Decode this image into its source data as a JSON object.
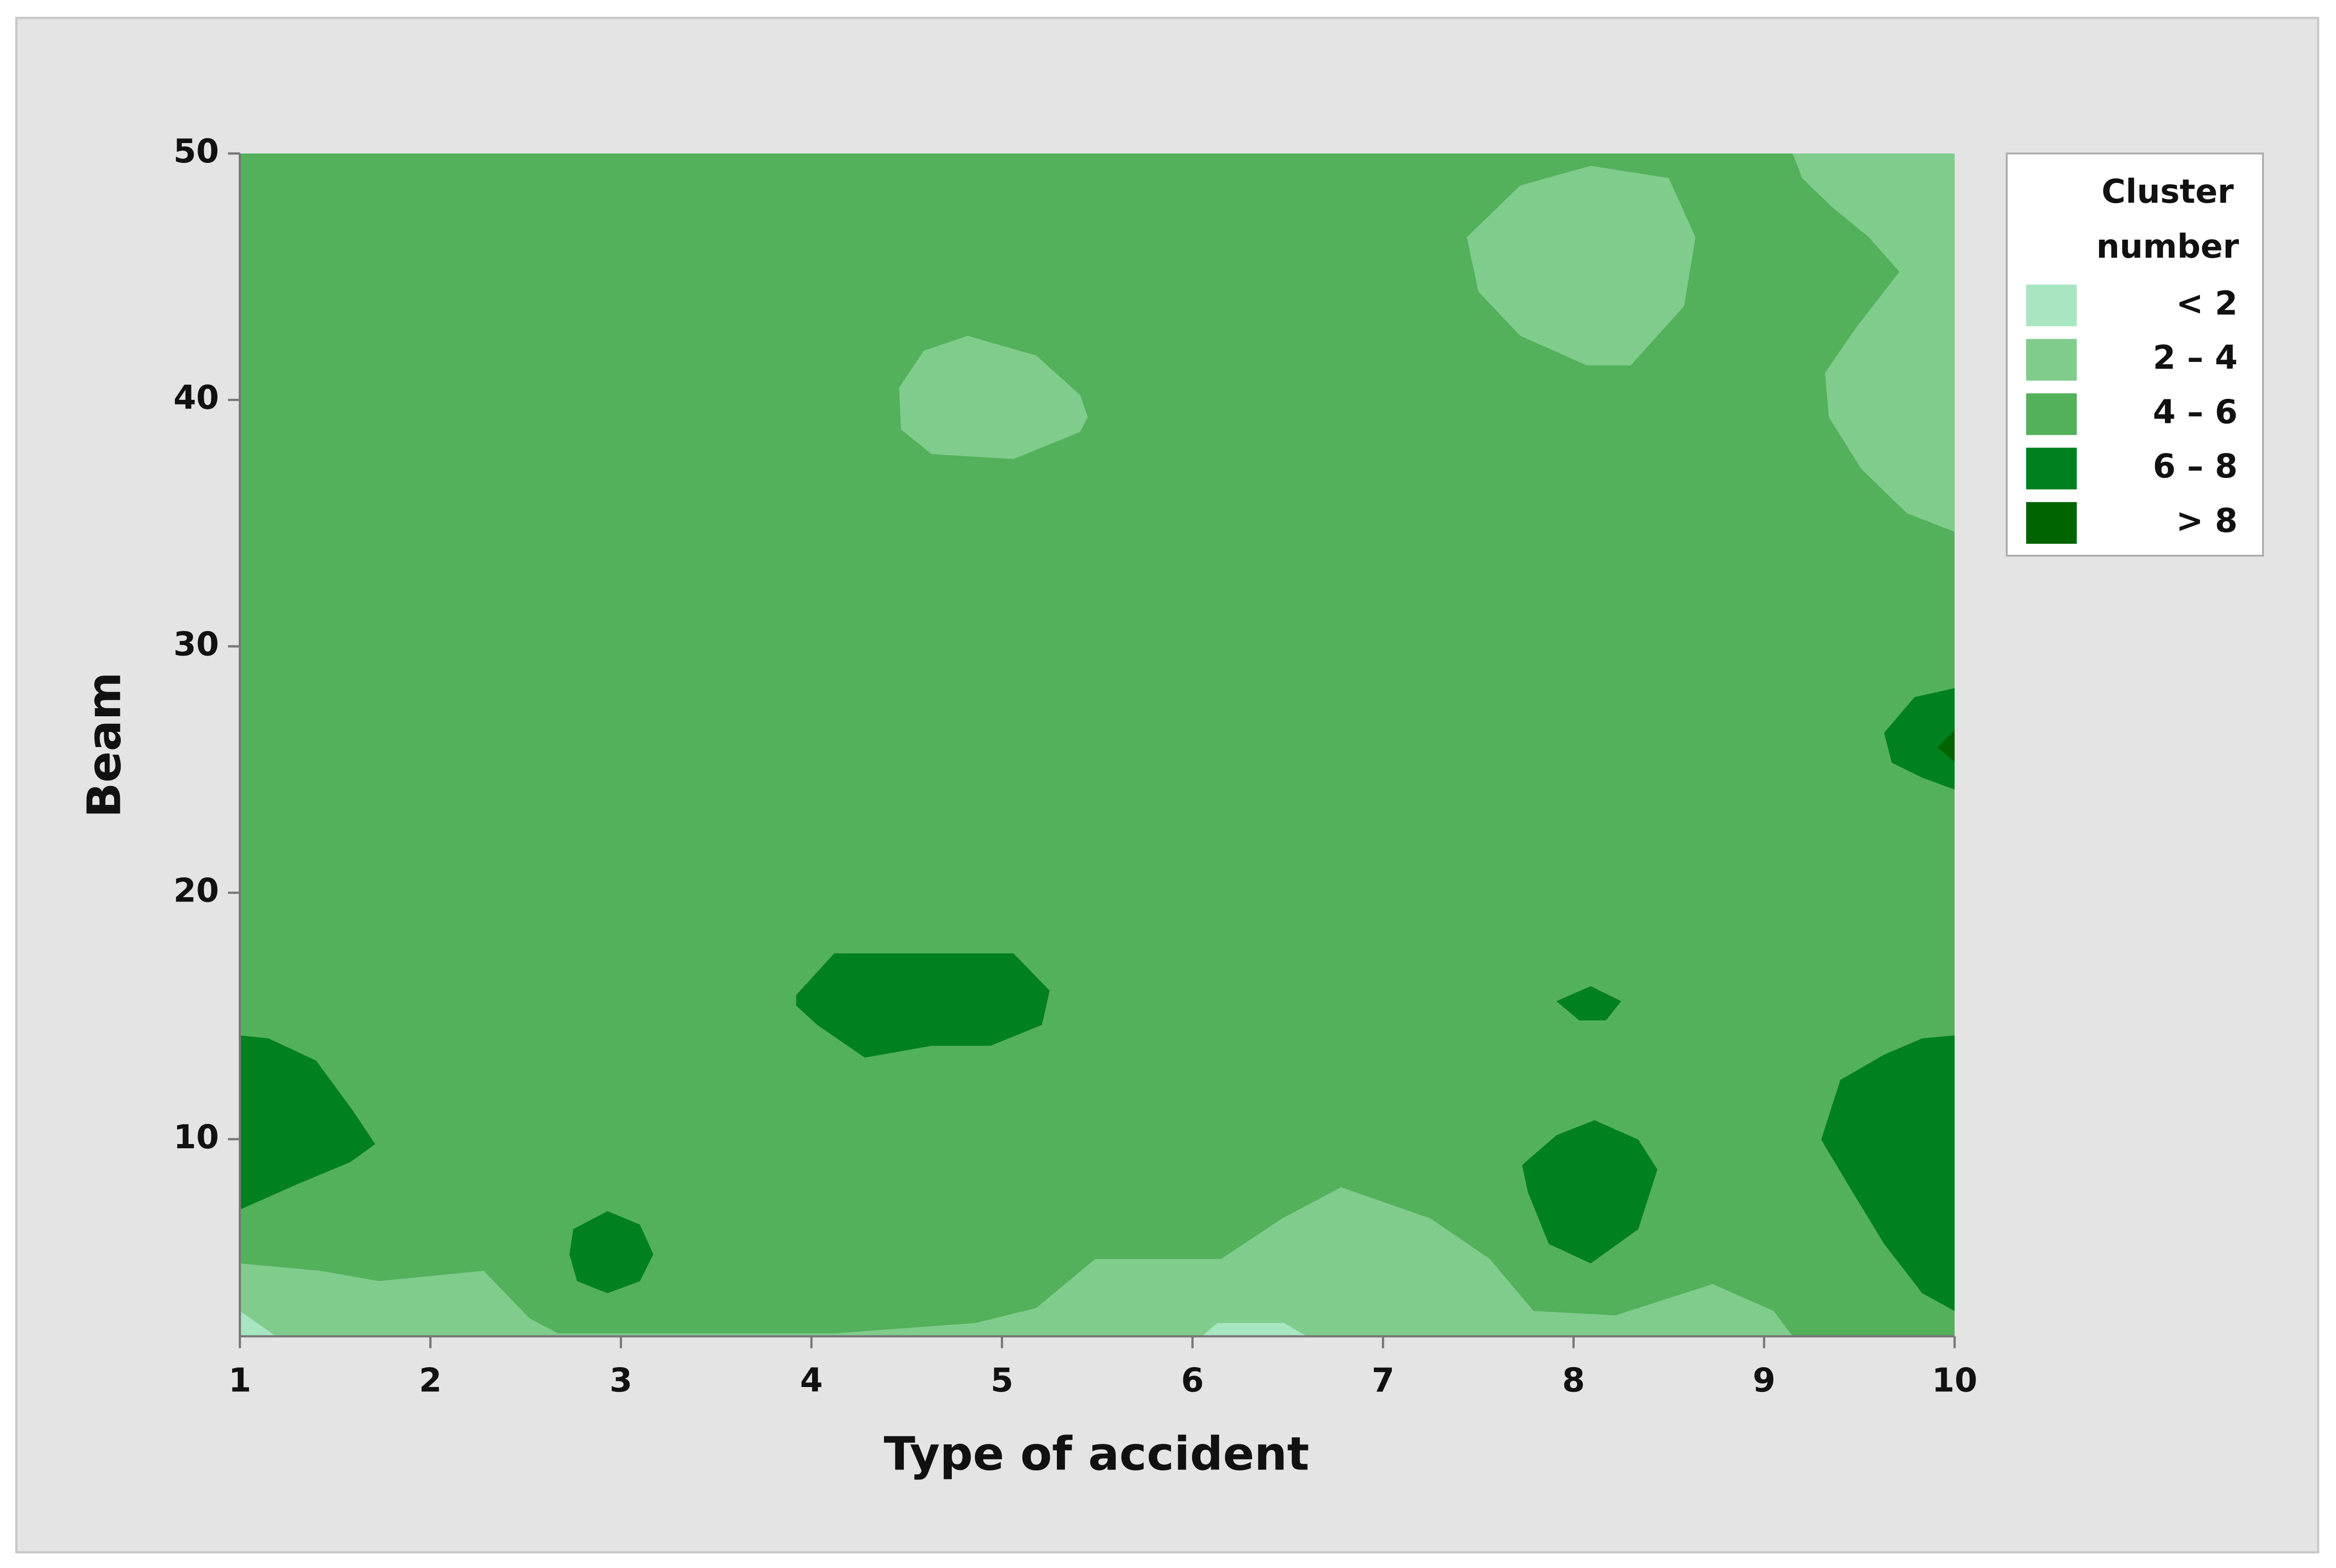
{
  "chart_data": {
    "type": "contour",
    "x_label": "Type of accident",
    "y_label": "Beam",
    "xlim": [
      1,
      10
    ],
    "ylim": [
      2,
      50
    ],
    "xticks": [
      1,
      2,
      3,
      4,
      5,
      6,
      7,
      8,
      9,
      10
    ],
    "yticks": [
      10,
      20,
      30,
      40,
      50
    ],
    "legend_title": "Cluster number",
    "levels": [
      {
        "label": "< 2",
        "color": "#a8e6c2"
      },
      {
        "label": "2 – 4",
        "color": "#80cc8c"
      },
      {
        "label": "4 – 6",
        "color": "#53b05b"
      },
      {
        "label": "6 – 8",
        "color": "#00801f"
      },
      {
        "label": "> 8",
        "color": "#006400"
      }
    ],
    "background_level": 2,
    "regions": [
      {
        "level": 1,
        "x": [
          9.15,
          10,
          10,
          9.75,
          9.51,
          9.34,
          9.32,
          9.48,
          9.71,
          9.55,
          9.36,
          9.2
        ],
        "y": [
          50,
          50,
          34.65,
          35.4,
          37.2,
          39.3,
          41.1,
          42.9,
          45.2,
          46.6,
          47.8,
          49.0
        ]
      },
      {
        "level": 1,
        "x": [
          7.44,
          7.72,
          8.09,
          8.5,
          8.64,
          8.58,
          8.3,
          8.07,
          7.72,
          7.5
        ],
        "y": [
          46.6,
          48.7,
          49.5,
          49.0,
          46.6,
          43.8,
          41.4,
          41.4,
          42.6,
          44.4
        ]
      },
      {
        "level": 1,
        "x": [
          4.46,
          4.59,
          4.82,
          5.18,
          5.41,
          5.45,
          5.41,
          5.06,
          4.63,
          4.47
        ],
        "y": [
          40.5,
          42.0,
          42.6,
          41.8,
          40.2,
          39.3,
          38.7,
          37.6,
          37.8,
          38.8
        ]
      },
      {
        "level": 1,
        "x": [
          1,
          1.42,
          1.73,
          2.28,
          2.52,
          2.67,
          4.12,
          4.86,
          5.18,
          5.49,
          6.15,
          6.47,
          6.78,
          7.25,
          7.56,
          7.79,
          8.22,
          8.73,
          9.05,
          9.15,
          1
        ],
        "y": [
          4.96,
          4.66,
          4.24,
          4.66,
          2.73,
          2.12,
          2.12,
          2.54,
          3.15,
          5.14,
          5.14,
          6.78,
          8.05,
          6.78,
          5.14,
          3.03,
          2.85,
          4.12,
          3.03,
          2,
          2
        ]
      },
      {
        "level": 0,
        "x": [
          1,
          1.19,
          1
        ],
        "y": [
          3.03,
          2,
          2
        ]
      },
      {
        "level": 0,
        "x": [
          6.05,
          6.13,
          6.48,
          6.6
        ],
        "y": [
          2,
          2.54,
          2.54,
          2
        ]
      },
      {
        "level": 3,
        "x": [
          1,
          1.15,
          1.4,
          1.59,
          1.71,
          1.58,
          1.3,
          1
        ],
        "y": [
          14.21,
          14.09,
          13.19,
          11.19,
          9.8,
          9.07,
          8.17,
          7.14
        ]
      },
      {
        "level": 3,
        "x": [
          2.75,
          2.93,
          3.1,
          3.17,
          3.1,
          2.93,
          2.77,
          2.73
        ],
        "y": [
          6.35,
          7.08,
          6.53,
          5.33,
          4.24,
          3.75,
          4.24,
          5.33
        ]
      },
      {
        "level": 3,
        "x": [
          3.92,
          4.12,
          5.06,
          5.25,
          5.21,
          4.94,
          4.63,
          4.28,
          4.03,
          3.92
        ],
        "y": [
          15.85,
          17.54,
          17.54,
          16.03,
          14.64,
          13.79,
          13.79,
          13.31,
          14.64,
          15.42
        ]
      },
      {
        "level": 3,
        "x": [
          7.91,
          8.09,
          8.25,
          8.17,
          8.03
        ],
        "y": [
          15.6,
          16.21,
          15.6,
          14.82,
          14.82
        ]
      },
      {
        "level": 3,
        "x": [
          7.73,
          7.91,
          8.11,
          8.34,
          8.44,
          8.34,
          8.09,
          7.87,
          7.76
        ],
        "y": [
          8.95,
          10.16,
          10.77,
          9.98,
          8.77,
          6.35,
          4.96,
          5.75,
          7.86
        ]
      },
      {
        "level": 3,
        "x": [
          10,
          10,
          9.83,
          9.63,
          9.44,
          9.3,
          9.4,
          9.63,
          9.83
        ],
        "y": [
          14.21,
          3.03,
          3.75,
          5.75,
          8.17,
          9.98,
          12.4,
          13.43,
          14.09
        ]
      },
      {
        "level": 3,
        "x": [
          10,
          10,
          9.83,
          9.67,
          9.63,
          9.79
        ],
        "y": [
          28.3,
          24.19,
          24.67,
          25.28,
          26.49,
          27.94
        ]
      },
      {
        "level": 4,
        "x": [
          10,
          9.91,
          10
        ],
        "y": [
          26.6,
          25.9,
          25.3
        ]
      }
    ]
  }
}
